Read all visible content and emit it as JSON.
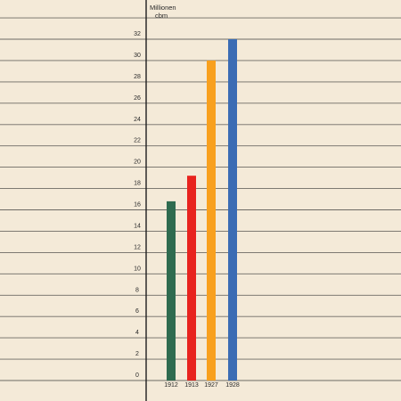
{
  "chart_data": {
    "type": "bar",
    "title": "",
    "xlabel": "",
    "ylabel": "",
    "unit_line1": "Millionen",
    "unit_line2": "cbm",
    "categories": [
      "1912",
      "1913",
      "1927",
      "1928"
    ],
    "values": [
      16.8,
      19.2,
      30,
      32
    ],
    "colors": [
      "#2f6b4f",
      "#e8231e",
      "#f8a01e",
      "#3b6cb4"
    ],
    "ylim": [
      0,
      32
    ],
    "yticks": [
      0,
      2,
      4,
      6,
      8,
      10,
      12,
      14,
      16,
      18,
      20,
      22,
      24,
      26,
      28,
      30,
      32
    ],
    "grid": true,
    "background": "#f4ead8",
    "grid_color": "#6d6a64",
    "axis_color": "#1e1e1e"
  }
}
